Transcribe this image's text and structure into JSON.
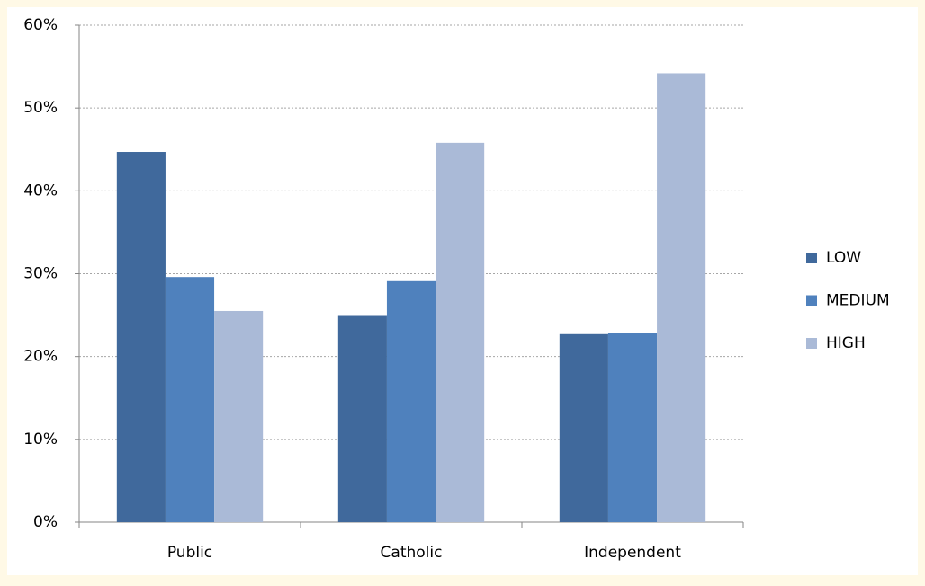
{
  "chart_data": {
    "type": "bar",
    "categories": [
      "Public",
      "Catholic",
      "Independent"
    ],
    "series": [
      {
        "name": "LOW",
        "color": "#40699c",
        "values": [
          44.7,
          24.9,
          22.7
        ]
      },
      {
        "name": "MEDIUM",
        "color": "#4f81bd",
        "values": [
          29.6,
          29.1,
          22.8
        ]
      },
      {
        "name": "HIGH",
        "color": "#aabad7",
        "values": [
          25.5,
          45.8,
          54.2
        ]
      }
    ],
    "ylim": [
      0,
      60
    ],
    "yticks": [
      {
        "value": 0,
        "label": "0%"
      },
      {
        "value": 10,
        "label": "10%"
      },
      {
        "value": 20,
        "label": "20%"
      },
      {
        "value": 30,
        "label": "30%"
      },
      {
        "value": 40,
        "label": "40%"
      },
      {
        "value": 50,
        "label": "50%"
      },
      {
        "value": 60,
        "label": "60%"
      }
    ],
    "grid": true,
    "legend": "right"
  }
}
